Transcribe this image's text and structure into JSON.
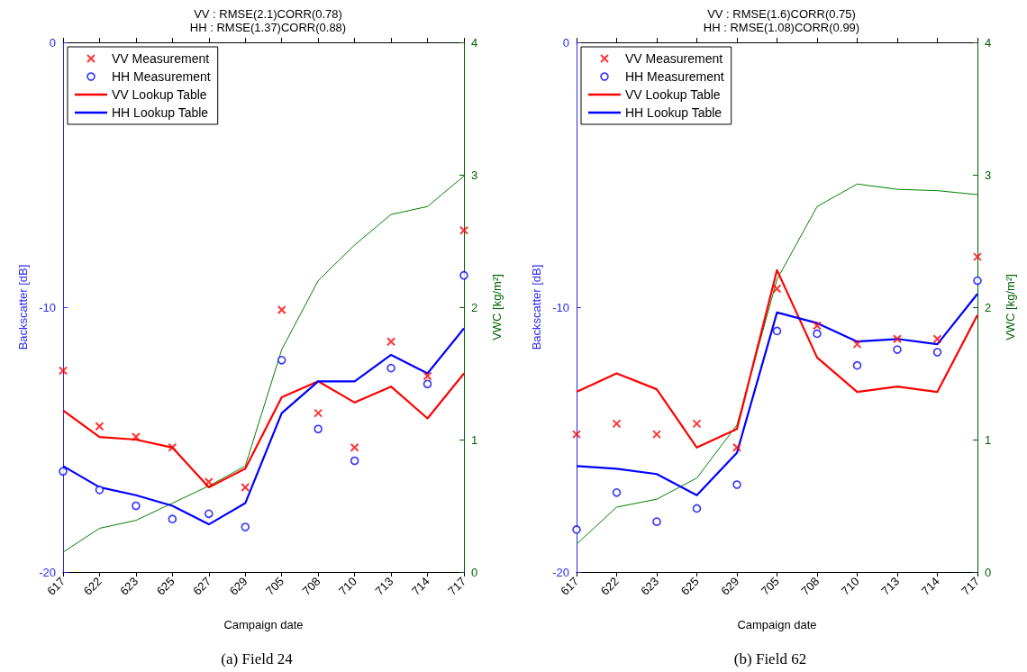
{
  "chart_data": [
    {
      "type": "line",
      "title": "VV : RMSE(2.1)CORR(0.78)",
      "subtitle": "HH : RMSE(1.37)CORR(0.88)",
      "xlabel": "Campaign date",
      "ylabel": "Backscatter [dB]",
      "y2label": "VWC [kg/m²]",
      "annotations": [
        "(a) Field 24"
      ],
      "categories": [
        "617",
        "622",
        "623",
        "625",
        "627",
        "629",
        "705",
        "708",
        "710",
        "713",
        "714",
        "717"
      ],
      "ylim": [
        -20,
        0
      ],
      "yticks": [
        -20,
        -10,
        0
      ],
      "y2lim": [
        0,
        4
      ],
      "y2ticks": [
        0,
        1,
        2,
        3,
        4
      ],
      "grid": false,
      "legend": "top left",
      "series": [
        {
          "name": "VV Measurement",
          "type": "scatter",
          "marker": "cross",
          "color": "#ff0000",
          "values": [
            -12.4,
            -14.5,
            -14.9,
            -15.3,
            -16.6,
            -16.8,
            -10.1,
            -14.0,
            -15.3,
            -11.3,
            -12.6,
            -7.1
          ]
        },
        {
          "name": "HH Measurement",
          "type": "scatter",
          "marker": "circle",
          "color": "#0000ff",
          "values": [
            -16.2,
            -16.9,
            -17.5,
            -18.0,
            -17.8,
            -18.3,
            -12.0,
            -14.6,
            -15.8,
            -12.3,
            -12.9,
            -8.8
          ]
        },
        {
          "name": "VV Lookup Table",
          "type": "line",
          "marker": "none",
          "color": "#ff0000",
          "values": [
            -13.9,
            -14.9,
            -15.0,
            -15.3,
            -16.8,
            -16.1,
            -13.4,
            -12.8,
            -13.6,
            -13.0,
            -14.2,
            -12.5
          ]
        },
        {
          "name": "HH Lookup Table",
          "type": "line",
          "marker": "none",
          "color": "#0000ff",
          "values": [
            -16.0,
            -16.8,
            -17.1,
            -17.5,
            -18.2,
            -17.4,
            -14.0,
            -12.8,
            -12.8,
            -11.8,
            -12.5,
            -10.8
          ]
        },
        {
          "type": "line",
          "marker": "none",
          "axis": "y2",
          "color": "#008000",
          "values": [
            0.15,
            0.33,
            0.39,
            0.52,
            0.65,
            0.8,
            1.68,
            2.2,
            2.47,
            2.7,
            2.76,
            2.99
          ]
        }
      ]
    },
    {
      "type": "line",
      "title": "VV : RMSE(1.6)CORR(0.75)",
      "subtitle": "HH : RMSE(1.08)CORR(0.99)",
      "xlabel": "Campaign date",
      "ylabel": "Backscatter [dB]",
      "y2label": "VWC [kg/m²]",
      "annotations": [
        "(b) Field 62"
      ],
      "categories": [
        "617",
        "622",
        "623",
        "625",
        "629",
        "705",
        "708",
        "710",
        "713",
        "714",
        "717"
      ],
      "ylim": [
        -20,
        0
      ],
      "yticks": [
        -20,
        -10,
        0
      ],
      "y2lim": [
        0,
        4
      ],
      "y2ticks": [
        0,
        1,
        2,
        3,
        4
      ],
      "grid": false,
      "legend": "top left",
      "series": [
        {
          "name": "VV Measurement",
          "type": "scatter",
          "marker": "cross",
          "color": "#ff0000",
          "values": [
            -14.8,
            -14.4,
            -14.8,
            -14.4,
            -15.3,
            -9.3,
            -10.7,
            -11.4,
            -11.2,
            -11.2,
            -8.1
          ]
        },
        {
          "name": "HH Measurement",
          "type": "scatter",
          "marker": "circle",
          "color": "#0000ff",
          "values": [
            -18.4,
            -17.0,
            -18.1,
            -17.6,
            -16.7,
            -10.9,
            -11.0,
            -12.2,
            -11.6,
            -11.7,
            -9.0
          ]
        },
        {
          "name": "VV Lookup Table",
          "type": "line",
          "marker": "none",
          "color": "#ff0000",
          "values": [
            -13.2,
            -12.5,
            -13.1,
            -15.3,
            -14.6,
            -8.6,
            -11.9,
            -13.2,
            -13.0,
            -13.2,
            -10.3
          ]
        },
        {
          "name": "HH Lookup Table",
          "type": "line",
          "marker": "none",
          "color": "#0000ff",
          "values": [
            -16.0,
            -16.1,
            -16.3,
            -17.1,
            -15.5,
            -10.2,
            -10.6,
            -11.3,
            -11.2,
            -11.4,
            -9.5
          ]
        },
        {
          "type": "line",
          "marker": "none",
          "axis": "y2",
          "color": "#008000",
          "values": [
            0.21,
            0.49,
            0.55,
            0.71,
            1.11,
            2.21,
            2.76,
            2.93,
            2.89,
            2.88,
            2.85
          ]
        }
      ]
    }
  ]
}
